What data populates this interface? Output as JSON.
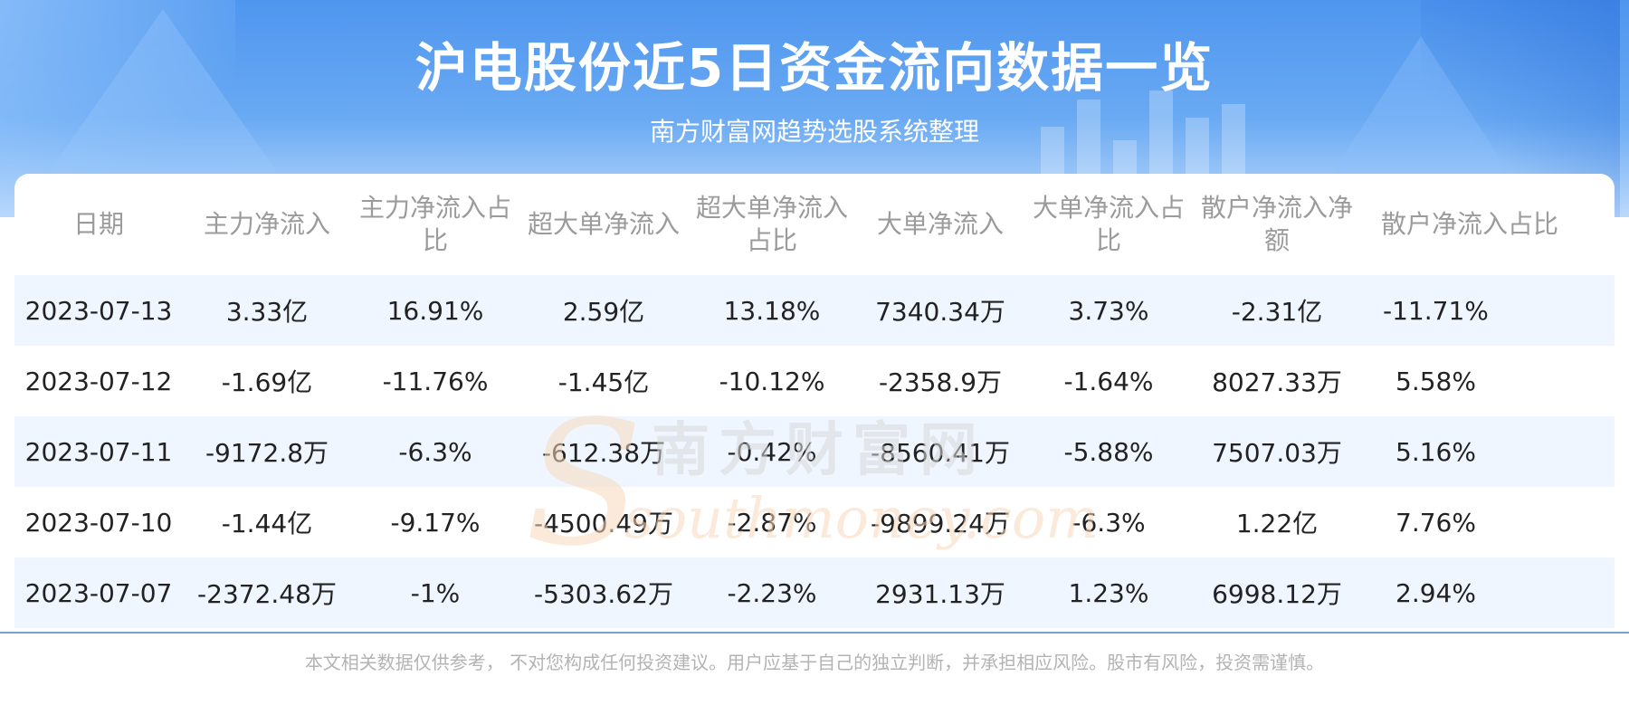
{
  "header": {
    "title": "沪电股份近5日资金流向数据一览",
    "subtitle": "南方财富网趋势选股系统整理"
  },
  "watermark": {
    "cn": "南方财富网",
    "en": "southmoney.com"
  },
  "table": {
    "columns": [
      "日期",
      "主力净流入",
      "主力净流入占比",
      "超大单净流入",
      "超大单净流入占比",
      "大单净流入",
      "大单净流入占比",
      "散户净流入净额",
      "散户净流入占比"
    ],
    "rows": [
      [
        "2023-07-13",
        "3.33亿",
        "16.91%",
        "2.59亿",
        "13.18%",
        "7340.34万",
        "3.73%",
        "-2.31亿",
        "-11.71%"
      ],
      [
        "2023-07-12",
        "-1.69亿",
        "-11.76%",
        "-1.45亿",
        "-10.12%",
        "-2358.9万",
        "-1.64%",
        "8027.33万",
        "5.58%"
      ],
      [
        "2023-07-11",
        "-9172.8万",
        "-6.3%",
        "-612.38万",
        "-0.42%",
        "-8560.41万",
        "-5.88%",
        "7507.03万",
        "5.16%"
      ],
      [
        "2023-07-10",
        "-1.44亿",
        "-9.17%",
        "-4500.49万",
        "-2.87%",
        "-9899.24万",
        "-6.3%",
        "1.22亿",
        "7.76%"
      ],
      [
        "2023-07-07",
        "-2372.48万",
        "-1%",
        "-5303.62万",
        "-2.23%",
        "2931.13万",
        "1.23%",
        "6998.12万",
        "2.94%"
      ]
    ]
  },
  "footer": {
    "disclaimer": "本文相关数据仅供参考， 不对您构成任何投资建议。用户应基于自己的独立判断，并承担相应风险。股市有风险，投资需谨慎。"
  },
  "colors": {
    "banner_top": "#4f96ef",
    "banner_bottom": "#bcd9fb",
    "row_stripe": "#ecf4ff",
    "header_text": "#9b9b9b",
    "cell_text": "#222222",
    "footer_text": "#b3b3b3"
  }
}
